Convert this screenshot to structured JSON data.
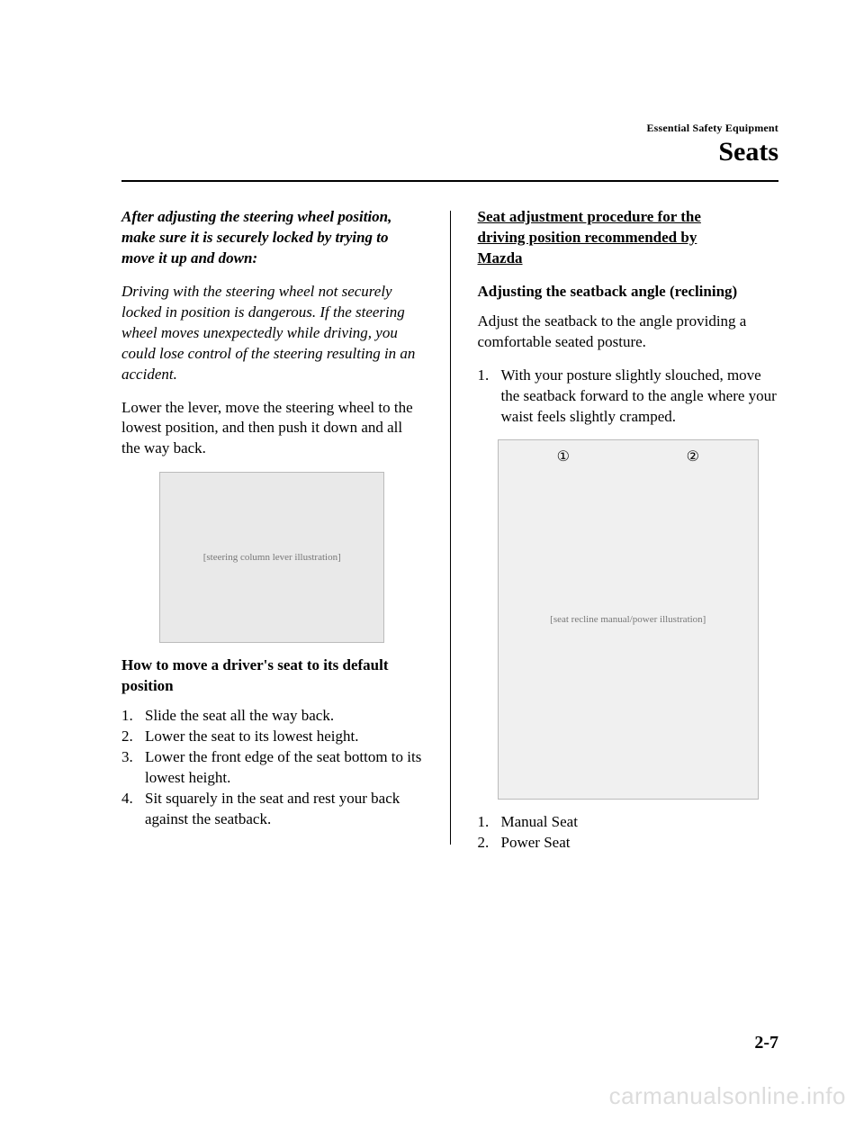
{
  "header": {
    "small": "Essential Safety Equipment",
    "big": "Seats"
  },
  "left": {
    "warn_bold": "After adjusting the steering wheel position, make sure it is securely locked by trying to move it up and down:",
    "warn_body": "Driving with the steering wheel not securely locked in position is dangerous. If the steering wheel moves unexpectedly while driving, you could lose control of the steering resulting in an accident.",
    "lower_lever": "Lower the lever, move the steering wheel to the lowest position, and then push it down and all the way back.",
    "img_alt": "[steering column lever illustration]",
    "howto_head": "How to move a driver's seat to its default position",
    "steps": [
      "Slide the seat all the way back.",
      "Lower the seat to its lowest height.",
      "Lower the front edge of the seat bottom to its lowest height.",
      "Sit squarely in the seat and rest your back against the seatback."
    ]
  },
  "right": {
    "proc_head_l1": "Seat adjustment procedure for the",
    "proc_head_l2": "driving position recommended by",
    "proc_head_l3": "Mazda",
    "recline_head": "Adjusting the seatback angle (reclining)",
    "recline_body": "Adjust the seatback to the angle providing a comfortable seated posture.",
    "step1": "With your posture slightly slouched, move the seatback forward to the angle where your waist feels slightly cramped.",
    "circ1": "①",
    "circ2": "②",
    "img_alt": "[seat recline manual/power illustration]",
    "legend": [
      "Manual Seat",
      "Power Seat"
    ]
  },
  "page_num": "2-7",
  "watermark": "carmanualsonline.info"
}
